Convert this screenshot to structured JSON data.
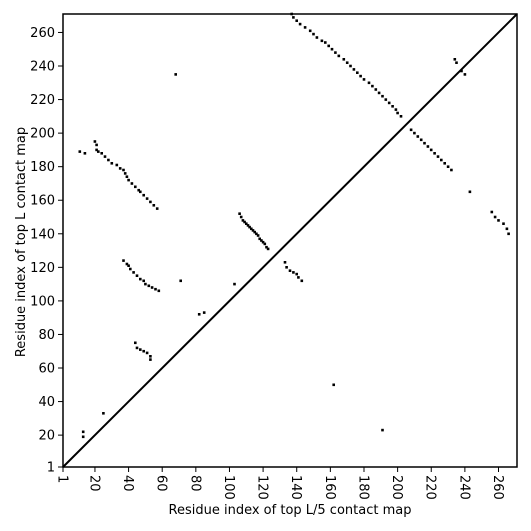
{
  "chart_data": {
    "type": "scatter",
    "xlabel": "Residue index of top L/5 contact map",
    "ylabel": "Residue index of top L contact map",
    "xlim": [
      1,
      271
    ],
    "ylim": [
      1,
      271
    ],
    "x_ticks": [
      1,
      20,
      40,
      60,
      80,
      100,
      120,
      140,
      160,
      180,
      200,
      220,
      240,
      260
    ],
    "y_ticks": [
      1,
      20,
      40,
      60,
      80,
      100,
      120,
      140,
      160,
      180,
      200,
      220,
      240,
      260
    ],
    "diagonal": true,
    "colors": {
      "points": "#000000",
      "diagonal": "#000000",
      "background": "#ffffff"
    },
    "series": [
      {
        "points": [
          [
            20,
            195
          ],
          [
            21,
            193
          ],
          [
            21,
            190
          ],
          [
            22,
            189
          ],
          [
            24,
            188
          ],
          [
            26,
            186
          ],
          [
            28,
            184
          ],
          [
            30,
            182
          ],
          [
            33,
            181
          ],
          [
            35,
            179
          ],
          [
            37,
            178
          ],
          [
            38,
            176
          ],
          [
            39,
            174
          ],
          [
            40,
            172
          ],
          [
            42,
            170
          ],
          [
            44,
            168
          ],
          [
            46,
            166
          ],
          [
            47,
            165
          ],
          [
            49,
            163
          ],
          [
            51,
            161
          ],
          [
            53,
            159
          ],
          [
            55,
            157
          ],
          [
            57,
            155
          ],
          [
            11,
            189
          ],
          [
            14,
            188
          ],
          [
            37,
            124
          ],
          [
            39,
            122
          ],
          [
            40,
            121
          ],
          [
            41,
            119
          ],
          [
            43,
            117
          ],
          [
            45,
            115
          ],
          [
            47,
            113
          ],
          [
            49,
            112
          ],
          [
            50,
            110
          ],
          [
            52,
            109
          ],
          [
            54,
            108
          ],
          [
            56,
            107
          ],
          [
            58,
            106
          ],
          [
            44,
            75
          ],
          [
            45,
            72
          ],
          [
            47,
            71
          ],
          [
            49,
            70
          ],
          [
            51,
            69
          ],
          [
            53,
            67
          ],
          [
            53,
            65
          ],
          [
            13,
            22
          ],
          [
            13,
            19
          ],
          [
            106,
            152
          ],
          [
            107,
            150
          ],
          [
            108,
            148
          ],
          [
            109,
            147
          ],
          [
            110,
            146
          ],
          [
            111,
            145
          ],
          [
            112,
            144
          ],
          [
            113,
            143
          ],
          [
            114,
            142
          ],
          [
            115,
            141
          ],
          [
            116,
            140
          ],
          [
            117,
            139
          ],
          [
            118,
            137
          ],
          [
            119,
            136
          ],
          [
            120,
            135
          ],
          [
            121,
            134
          ],
          [
            122,
            132
          ],
          [
            123,
            131
          ],
          [
            133,
            123
          ],
          [
            134,
            120
          ],
          [
            136,
            118
          ],
          [
            138,
            117
          ],
          [
            140,
            116
          ],
          [
            141,
            114
          ],
          [
            143,
            112
          ],
          [
            82,
            92
          ],
          [
            85,
            93
          ],
          [
            103,
            110
          ],
          [
            137,
            271
          ],
          [
            138,
            269
          ],
          [
            140,
            267
          ],
          [
            142,
            265
          ],
          [
            145,
            263
          ],
          [
            148,
            261
          ],
          [
            150,
            259
          ],
          [
            152,
            257
          ],
          [
            155,
            255
          ],
          [
            157,
            254
          ],
          [
            159,
            252
          ],
          [
            161,
            250
          ],
          [
            163,
            248
          ],
          [
            165,
            246
          ],
          [
            168,
            244
          ],
          [
            170,
            242
          ],
          [
            172,
            240
          ],
          [
            174,
            238
          ],
          [
            176,
            236
          ],
          [
            178,
            234
          ],
          [
            180,
            232
          ],
          [
            183,
            230
          ],
          [
            185,
            228
          ],
          [
            187,
            226
          ],
          [
            189,
            224
          ],
          [
            191,
            222
          ],
          [
            193,
            220
          ],
          [
            195,
            218
          ],
          [
            197,
            216
          ],
          [
            199,
            214
          ],
          [
            200,
            212
          ],
          [
            202,
            210
          ],
          [
            208,
            202
          ],
          [
            210,
            200
          ],
          [
            212,
            198
          ],
          [
            214,
            196
          ],
          [
            216,
            194
          ],
          [
            218,
            192
          ],
          [
            220,
            190
          ],
          [
            222,
            188
          ],
          [
            224,
            186
          ],
          [
            226,
            184
          ],
          [
            228,
            182
          ],
          [
            230,
            180
          ],
          [
            232,
            178
          ],
          [
            234,
            244
          ],
          [
            235,
            242
          ],
          [
            238,
            237
          ],
          [
            240,
            235
          ],
          [
            256,
            153
          ],
          [
            258,
            150
          ],
          [
            260,
            148
          ],
          [
            263,
            146
          ],
          [
            265,
            143
          ],
          [
            266,
            140
          ],
          [
            68,
            235
          ],
          [
            71,
            112
          ],
          [
            25,
            33
          ],
          [
            162,
            50
          ],
          [
            191,
            23
          ],
          [
            243,
            165
          ]
        ]
      }
    ]
  }
}
